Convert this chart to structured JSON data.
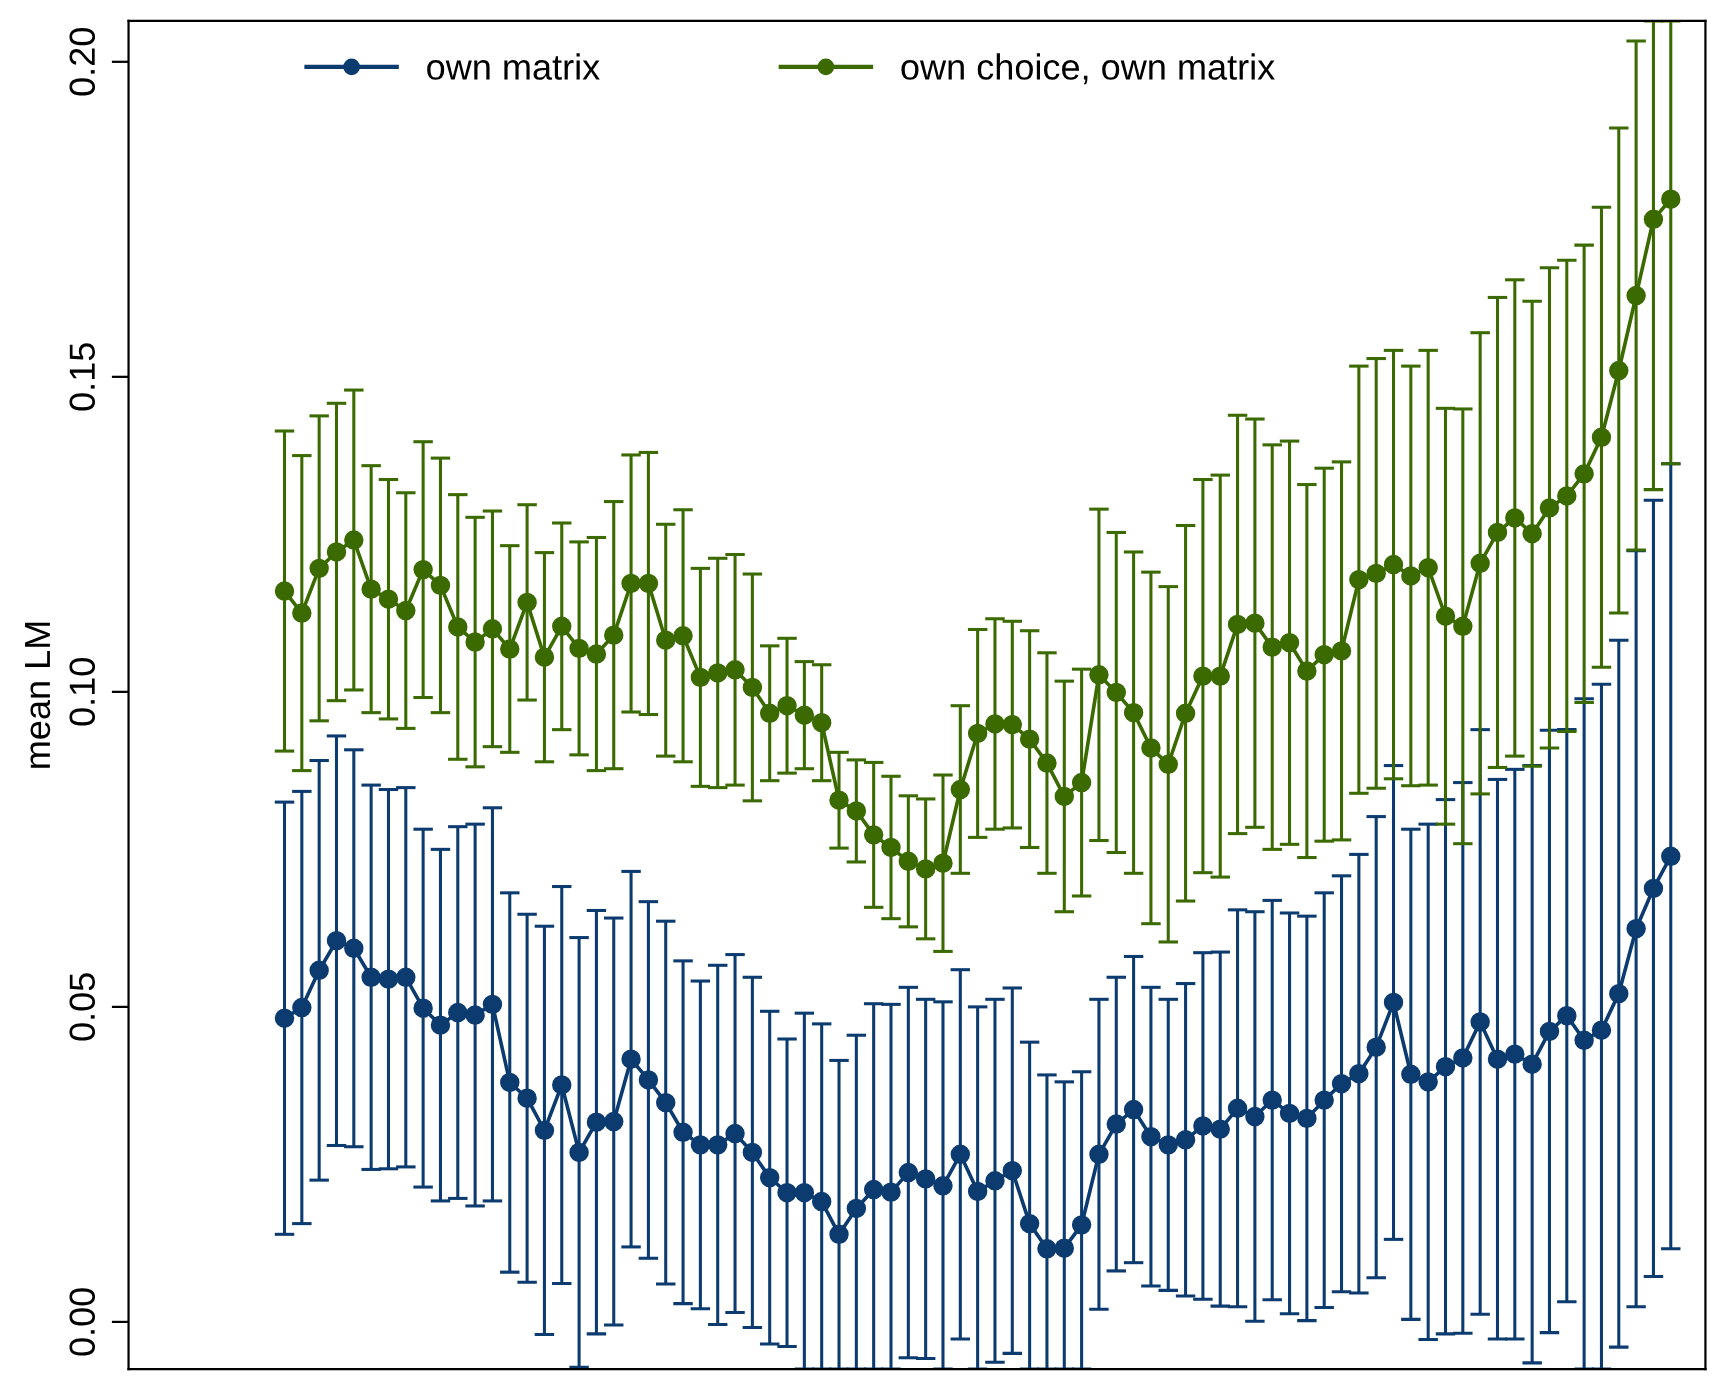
{
  "chart_data": {
    "type": "line",
    "ylabel": "mean LM",
    "categories": [
      null,
      null,
      null,
      null,
      null,
      null,
      null,
      null,
      null,
      null,
      null,
      null,
      null,
      null,
      null,
      null,
      null,
      null,
      null,
      null,
      null,
      null,
      null,
      null,
      null,
      null,
      null,
      null,
      null,
      null,
      null,
      null,
      null,
      null,
      null,
      null,
      null,
      null,
      null,
      null,
      null,
      null,
      null,
      null,
      null,
      null,
      null,
      null,
      null,
      null,
      null,
      null,
      null,
      null,
      null,
      null,
      null,
      null,
      null,
      null,
      null,
      null,
      null,
      null,
      null,
      null,
      null,
      null,
      null,
      null,
      null,
      null,
      null,
      null,
      null,
      null,
      null,
      null,
      null,
      null,
      null
    ],
    "series": [
      {
        "name": "own matrix",
        "color": "#0b3b6f",
        "values": [
          0.0482,
          0.0499,
          0.0558,
          0.0605,
          0.0593,
          0.0547,
          0.0544,
          0.0547,
          0.0498,
          0.0471,
          0.0491,
          0.0487,
          0.0504,
          0.038,
          0.0355,
          0.0304,
          0.0376,
          0.0269,
          0.0317,
          0.0318,
          0.0417,
          0.0384,
          0.0348,
          0.0301,
          0.0281,
          0.0281,
          0.0299,
          0.0269,
          0.0229,
          0.0205,
          0.0205,
          0.0191,
          0.0139,
          0.018,
          0.021,
          0.0206,
          0.0237,
          0.0227,
          0.0216,
          0.0266,
          0.0207,
          0.0224,
          0.024,
          0.0156,
          0.0116,
          0.0117,
          0.0154,
          0.0266,
          0.0314,
          0.0337,
          0.0294,
          0.0281,
          0.0289,
          0.0311,
          0.0306,
          0.0339,
          0.0326,
          0.0352,
          0.0331,
          0.0323,
          0.0352,
          0.0378,
          0.0394,
          0.0436,
          0.0507,
          0.0393,
          0.0381,
          0.0405,
          0.0419,
          0.0476,
          0.0417,
          0.0425,
          0.0409,
          0.0461,
          0.0486,
          0.0447,
          0.0463,
          0.0521,
          0.0624,
          0.0688,
          0.0739
        ],
        "errors": [
          0.0343,
          0.0343,
          0.0333,
          0.0325,
          0.0315,
          0.0305,
          0.0301,
          0.0301,
          0.0284,
          0.0279,
          0.0295,
          0.0303,
          0.0312,
          0.0301,
          0.0292,
          0.0324,
          0.0315,
          0.0341,
          0.0336,
          0.0323,
          0.0298,
          0.0283,
          0.0288,
          0.0272,
          0.026,
          0.0285,
          0.0284,
          0.0278,
          0.0264,
          0.0244,
          [
            -0.0075,
            0.049
          ],
          [
            -0.0075,
            0.0473
          ],
          [
            -0.0075,
            0.0415
          ],
          [
            -0.0075,
            0.0455
          ],
          [
            -0.0075,
            0.0505
          ],
          [
            -0.0075,
            0.0504
          ],
          0.0294,
          0.0285,
          [
            -0.0075,
            0.0508
          ],
          0.0293,
          [
            -0.0075,
            0.05
          ],
          0.0288,
          0.029,
          [
            -0.0075,
            0.0444
          ],
          [
            -0.0075,
            0.0392
          ],
          [
            -0.0075,
            0.0381
          ],
          [
            -0.0075,
            0.0397
          ],
          0.0246,
          0.0233,
          0.0243,
          0.0237,
          0.0231,
          0.0248,
          0.0275,
          0.0281,
          0.0315,
          0.0325,
          0.0317,
          0.0318,
          0.0321,
          0.0329,
          0.033,
          0.0348,
          0.0366,
          0.0376,
          0.0389,
          0.0409,
          0.0424,
          0.0437,
          0.0464,
          0.0444,
          0.0452,
          0.0474,
          0.0478,
          0.0454,
          [
            -0.0075,
            0.0989
          ],
          [
            -0.0075,
            0.1012
          ],
          0.0561,
          0.06,
          0.0616,
          0.0623
        ]
      },
      {
        "name": "own choice, own matrix",
        "color": "#3a6a00",
        "values": [
          0.116,
          0.1125,
          0.1196,
          0.1222,
          0.1241,
          0.1163,
          0.1147,
          0.1129,
          0.1194,
          0.1169,
          0.1103,
          0.1079,
          0.11,
          0.1068,
          0.1142,
          0.1055,
          0.1104,
          0.1069,
          0.106,
          0.109,
          0.1172,
          0.1172,
          0.1082,
          0.1089,
          0.1023,
          0.103,
          0.1035,
          0.1007,
          0.0966,
          0.0978,
          0.0963,
          0.0951,
          0.0828,
          0.0811,
          0.0773,
          0.0753,
          0.0731,
          0.0719,
          0.0728,
          0.0845,
          0.0934,
          0.0949,
          0.0948,
          0.0925,
          0.0887,
          0.0834,
          0.0856,
          0.1027,
          0.0999,
          0.0967,
          0.0911,
          0.0885,
          0.0966,
          0.1025,
          0.1025,
          0.1107,
          0.1109,
          0.1071,
          0.1078,
          0.1033,
          0.1059,
          0.1065,
          0.1178,
          0.1188,
          0.1202,
          0.1184,
          0.1197,
          0.112,
          0.1104,
          0.1204,
          0.1253,
          0.1276,
          0.1251,
          0.1292,
          0.1311,
          0.1346,
          0.1404,
          0.151,
          0.1629,
          0.175,
          0.1782
        ],
        "errors": [
          0.0254,
          0.025,
          0.0242,
          0.0236,
          0.0238,
          0.0196,
          0.019,
          0.0187,
          0.0203,
          0.0202,
          0.021,
          0.0198,
          0.0187,
          0.0164,
          0.0155,
          0.0166,
          0.0164,
          0.0169,
          0.0185,
          0.0212,
          0.0204,
          0.0208,
          0.0184,
          0.02,
          0.0173,
          0.0182,
          0.0183,
          0.018,
          0.0107,
          0.0107,
          0.0085,
          0.0092,
          0.0076,
          0.0081,
          0.0115,
          0.0113,
          0.0104,
          0.0111,
          0.014,
          0.0133,
          0.0165,
          0.0167,
          0.0164,
          0.0172,
          0.0175,
          0.0183,
          0.018,
          0.0263,
          0.0254,
          0.0255,
          0.0279,
          0.0282,
          0.0298,
          0.0312,
          0.0319,
          0.0332,
          0.0324,
          0.0321,
          0.032,
          0.0296,
          0.0296,
          0.03,
          0.0339,
          0.0341,
          0.034,
          0.0333,
          0.0345,
          0.033,
          0.0345,
          0.0366,
          0.0373,
          0.0378,
          0.0369,
          0.0381,
          0.0374,
          0.0363,
          0.0365,
          0.0385,
          0.0404,
          [
            0.1321,
            0.2065
          ],
          [
            0.1362,
            0.2065
          ]
        ]
      }
    ],
    "ylim": [
      -0.0075,
      0.2065
    ],
    "yticks": [
      {
        "value": 0,
        "label": "0.00"
      },
      {
        "value": 0.05,
        "label": "0.05"
      },
      {
        "value": 0.1,
        "label": "0.10"
      },
      {
        "value": 0.15,
        "label": "0.15"
      },
      {
        "value": 0.2,
        "label": "0.20"
      }
    ],
    "tick_labels": "y",
    "grid": false,
    "legend": "top",
    "marker": "circle",
    "line_style": "solid"
  }
}
